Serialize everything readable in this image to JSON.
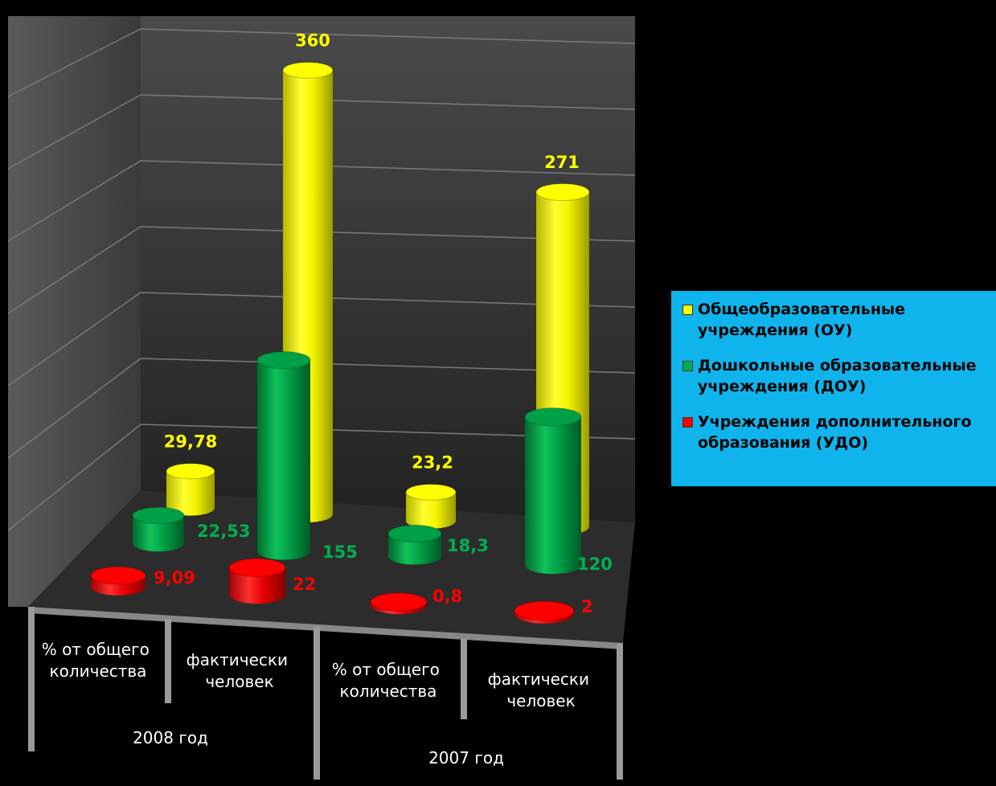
{
  "chart_data": {
    "type": "bar",
    "style": "3d-cylinder",
    "groups": [
      {
        "label": "2008 год",
        "categories": [
          "% от общего количества",
          "фактически человек"
        ]
      },
      {
        "label": "2007 год",
        "categories": [
          "% от общего количества",
          "фактически человек"
        ]
      }
    ],
    "series": [
      {
        "name": "Общеобразовательные учреждения (ОУ)",
        "color": "#ffff00",
        "values": [
          29.78,
          360,
          23.2,
          271
        ],
        "labels": [
          "29,78",
          "360",
          "23,2",
          "271"
        ],
        "label_color": "#ffff00"
      },
      {
        "name": "Дошкольные образовательные учреждения (ДОУ)",
        "color": "#00a046",
        "values": [
          22.53,
          155,
          18.3,
          120
        ],
        "labels": [
          "22,53",
          "155",
          "18,3",
          "120"
        ],
        "label_color": "#00b050"
      },
      {
        "name": "Учреждения дополнительного образования (УДО)",
        "color": "#ff0000",
        "values": [
          9.09,
          22,
          0.8,
          2
        ],
        "labels": [
          "9,09",
          "22",
          "0,8",
          "2"
        ],
        "label_color": "#ff0000"
      }
    ],
    "grid": true,
    "legend_position": "right"
  },
  "legend": {
    "items": [
      {
        "label": "Общеобразовательные\nучреждения (ОУ)",
        "color": "#ffff00"
      },
      {
        "label": "Дошкольные образовательные\nучреждения (ДОУ)",
        "color": "#00b050"
      },
      {
        "label": "Учреждения дополнительного\nобразования (УДО)",
        "color": "#ff0000"
      }
    ]
  }
}
